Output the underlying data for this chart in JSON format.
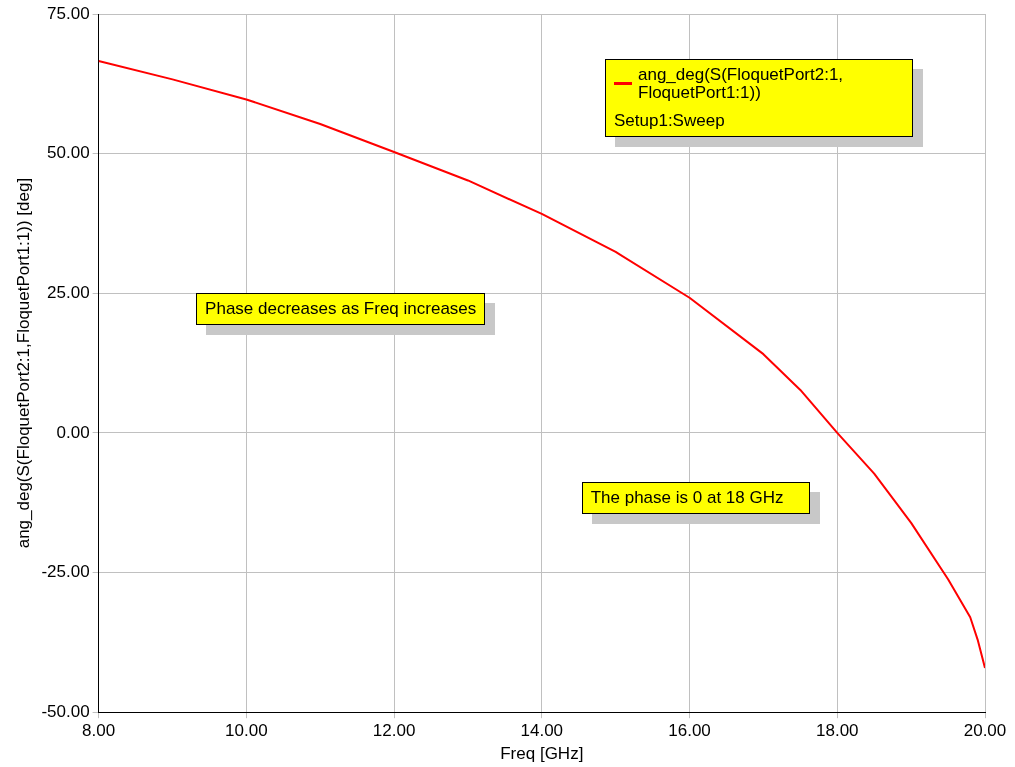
{
  "chart_data": {
    "type": "line",
    "xlabel": "Freq [GHz]",
    "ylabel": "ang_deg(S(FloquetPort2:1,FloquetPort1:1)) [deg]",
    "x": [
      8,
      9,
      10,
      11,
      12,
      13,
      14,
      15,
      16,
      17,
      17.5,
      18,
      18.5,
      19,
      19.5,
      19.8,
      19.9,
      20
    ],
    "series": [
      {
        "name": "ang_deg(S(FloquetPort2:1, FloquetPort1:1))",
        "color": "#ff0000",
        "values": [
          66.6,
          63.3,
          59.7,
          55.3,
          50.3,
          45.2,
          39.2,
          32.4,
          24.2,
          14.1,
          7.7,
          0,
          -7.3,
          -16.1,
          -26.2,
          -33,
          -37,
          -42.1
        ]
      }
    ],
    "legend_title": "Setup1:Sweep",
    "legend": "top right",
    "annotations": [
      "Phase decreases as Freq increases",
      "The phase is 0 at 18 GHz"
    ],
    "xlim": [
      8,
      20
    ],
    "xticks": [
      {
        "value": 8,
        "label": "8.00"
      },
      {
        "value": 10,
        "label": "10.00"
      },
      {
        "value": 12,
        "label": "12.00"
      },
      {
        "value": 14,
        "label": "14.00"
      },
      {
        "value": 16,
        "label": "16.00"
      },
      {
        "value": 18,
        "label": "18.00"
      },
      {
        "value": 20,
        "label": "20.00"
      }
    ],
    "ylim": [
      -50,
      75
    ],
    "yticks": [
      {
        "value": -50,
        "label": "-50.00"
      },
      {
        "value": -25,
        "label": "-25.00"
      },
      {
        "value": 0,
        "label": "0.00"
      },
      {
        "value": 25,
        "label": "25.00"
      },
      {
        "value": 50,
        "label": "50.00"
      },
      {
        "value": 75,
        "label": "75.00"
      }
    ],
    "grid": true,
    "line_style": "solid",
    "marker": "none"
  }
}
